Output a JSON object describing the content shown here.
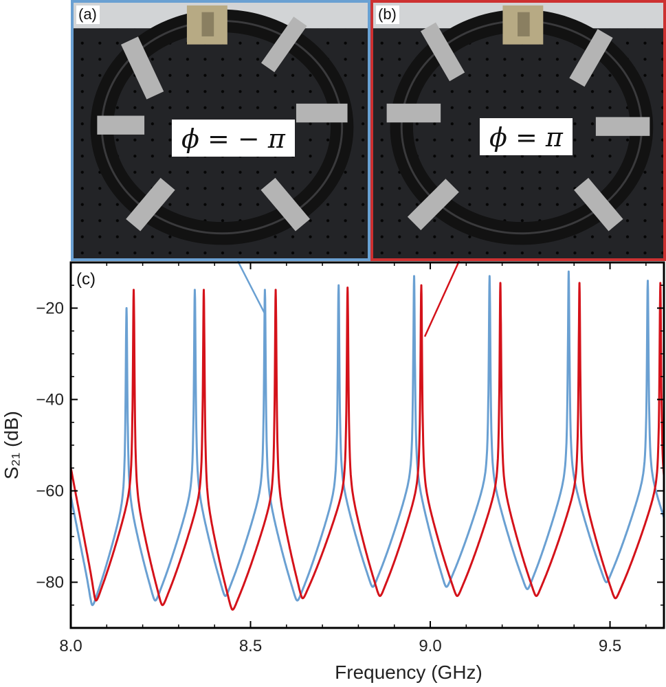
{
  "colors": {
    "phi_minus": "#6aa0d2",
    "phi_plus": "#d4121a"
  },
  "panels": [
    {
      "tag": "(a)",
      "phase_label": "ϕ = − π",
      "border_color": "#6aa0d2"
    },
    {
      "tag": "(b)",
      "phase_label": "ϕ = π",
      "border_color": "#cd3131"
    }
  ],
  "chart_data": {
    "type": "line",
    "panel_label": "(c)",
    "xlabel": "Frequency (GHz)",
    "ylabel": "S₂₁ (dB)",
    "xlim": [
      8.0,
      9.65
    ],
    "ylim": [
      -90,
      -10
    ],
    "xticks": [
      8.0,
      8.5,
      9.0,
      9.5
    ],
    "xtick_labels": [
      "8.0",
      "8.5",
      "9.0",
      "9.5"
    ],
    "yticks": [
      -20,
      -40,
      -60,
      -80
    ],
    "ytick_labels": [
      "−20",
      "−40",
      "−60",
      "−80"
    ],
    "grid": false,
    "legend": "none",
    "series": [
      {
        "color": "#6aa0d2",
        "peak_freqs": [
          8.155,
          8.345,
          8.54,
          8.745,
          8.955,
          9.165,
          9.385,
          9.605
        ],
        "peak_levels": [
          -20,
          -16,
          -16,
          -15,
          -13,
          -13,
          -12,
          -14
        ],
        "dip_freqs": [
          8.06,
          8.235,
          8.43,
          8.63,
          8.84,
          9.045,
          9.27,
          9.49
        ],
        "dip_levels": [
          -85,
          -84,
          -83,
          -84,
          -81,
          -81,
          -81.5,
          -80
        ]
      },
      {
        "color": "#d4121a",
        "peak_freqs": [
          8.175,
          8.37,
          8.57,
          8.77,
          8.975,
          9.195,
          9.415,
          9.64
        ],
        "peak_levels": [
          -16,
          -16,
          -16,
          -15.5,
          -15,
          -14.5,
          -14.5,
          -14.5
        ],
        "dip_freqs": [
          8.07,
          8.255,
          8.45,
          8.645,
          8.86,
          9.075,
          9.295,
          9.515
        ],
        "dip_levels": [
          -84,
          -85,
          -86,
          -83.5,
          -83,
          -83,
          -83,
          -83.5
        ]
      }
    ]
  }
}
